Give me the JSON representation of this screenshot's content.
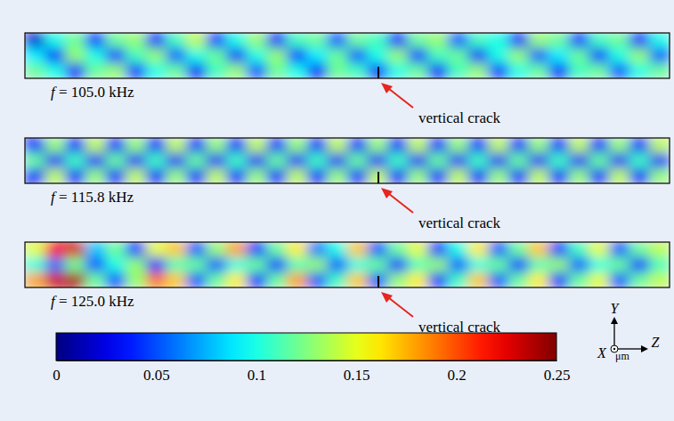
{
  "chart_data": {
    "type": "heatmap",
    "panels": [
      {
        "label": "f = 105.0 kHz",
        "annotation": "vertical crack",
        "cells": [
          [
            0.02,
            0.1,
            0.12,
            0.04,
            0.12,
            0.13,
            0.03,
            0.11,
            0.14,
            0.04,
            0.1,
            0.13,
            0.03,
            0.11,
            0.12,
            0.05,
            0.12,
            0.11,
            0.03,
            0.12,
            0.13,
            0.05,
            0.11,
            0.1,
            0.03,
            0.13,
            0.12,
            0.04,
            0.11,
            0.12,
            0.03,
            0.1
          ],
          [
            0.09,
            0.03,
            0.13,
            0.1,
            0.04,
            0.11,
            0.13,
            0.05,
            0.1,
            0.12,
            0.03,
            0.1,
            0.13,
            0.04,
            0.09,
            0.12,
            0.05,
            0.1,
            0.13,
            0.04,
            0.11,
            0.12,
            0.03,
            0.1,
            0.13,
            0.05,
            0.09,
            0.12,
            0.04,
            0.1,
            0.13,
            0.05
          ],
          [
            0.12,
            0.1,
            0.03,
            0.12,
            0.13,
            0.04,
            0.1,
            0.12,
            0.03,
            0.11,
            0.13,
            0.05,
            0.12,
            0.1,
            0.03,
            0.12,
            0.11,
            0.04,
            0.1,
            0.12,
            0.03,
            0.11,
            0.13,
            0.04,
            0.1,
            0.12,
            0.03,
            0.11,
            0.12,
            0.05,
            0.1,
            0.12
          ]
        ]
      },
      {
        "label": "f = 115.8 kHz",
        "annotation": "vertical crack",
        "cells": [
          [
            0.03,
            0.13,
            0.03,
            0.14,
            0.03,
            0.13,
            0.03,
            0.14,
            0.03,
            0.13,
            0.03,
            0.14,
            0.03,
            0.13,
            0.03,
            0.14,
            0.03,
            0.13,
            0.03,
            0.14,
            0.03,
            0.13,
            0.03,
            0.14,
            0.03,
            0.13,
            0.03,
            0.14,
            0.03,
            0.13,
            0.03,
            0.14
          ],
          [
            0.12,
            0.03,
            0.11,
            0.03,
            0.12,
            0.03,
            0.11,
            0.03,
            0.12,
            0.03,
            0.11,
            0.03,
            0.12,
            0.03,
            0.11,
            0.03,
            0.12,
            0.03,
            0.11,
            0.03,
            0.12,
            0.03,
            0.11,
            0.03,
            0.12,
            0.03,
            0.11,
            0.03,
            0.12,
            0.03,
            0.11,
            0.03
          ],
          [
            0.03,
            0.14,
            0.03,
            0.13,
            0.03,
            0.14,
            0.03,
            0.13,
            0.03,
            0.14,
            0.03,
            0.13,
            0.03,
            0.14,
            0.03,
            0.13,
            0.03,
            0.14,
            0.03,
            0.13,
            0.03,
            0.14,
            0.03,
            0.13,
            0.03,
            0.14,
            0.03,
            0.13,
            0.03,
            0.14,
            0.03,
            0.13
          ]
        ]
      },
      {
        "label": "f = 125.0 kHz",
        "annotation": "vertical crack",
        "cells": [
          [
            0.15,
            0.22,
            0.23,
            0.08,
            0.12,
            0.04,
            0.15,
            0.17,
            0.05,
            0.13,
            0.18,
            0.04,
            0.12,
            0.16,
            0.06,
            0.1,
            0.17,
            0.05,
            0.12,
            0.15,
            0.04,
            0.1,
            0.16,
            0.05,
            0.12,
            0.17,
            0.04,
            0.11,
            0.15,
            0.05,
            0.12,
            0.14
          ],
          [
            0.1,
            0.06,
            0.12,
            0.05,
            0.1,
            0.13,
            0.04,
            0.11,
            0.12,
            0.05,
            0.1,
            0.12,
            0.04,
            0.11,
            0.13,
            0.05,
            0.1,
            0.12,
            0.04,
            0.11,
            0.13,
            0.05,
            0.1,
            0.12,
            0.04,
            0.11,
            0.13,
            0.05,
            0.1,
            0.12,
            0.04,
            0.11
          ],
          [
            0.18,
            0.23,
            0.24,
            0.12,
            0.05,
            0.13,
            0.19,
            0.17,
            0.05,
            0.12,
            0.16,
            0.04,
            0.12,
            0.18,
            0.05,
            0.11,
            0.17,
            0.05,
            0.13,
            0.16,
            0.04,
            0.11,
            0.17,
            0.05,
            0.12,
            0.16,
            0.04,
            0.12,
            0.15,
            0.05,
            0.12,
            0.14
          ]
        ]
      }
    ],
    "colorbar": {
      "range": [
        0,
        0.25
      ],
      "ticks": [
        0,
        0.05,
        0.1,
        0.15,
        0.2,
        0.25
      ]
    },
    "axes_triad": {
      "y": "Y",
      "x": "X",
      "z": "Z",
      "unit": "μm"
    }
  }
}
